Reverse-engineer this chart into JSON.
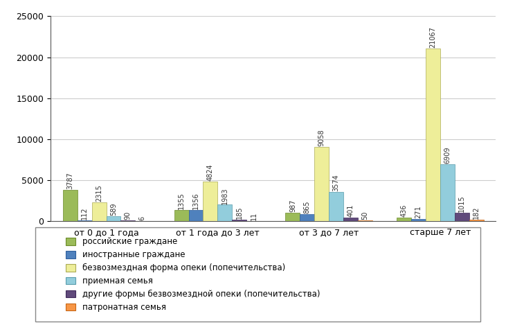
{
  "categories": [
    "от 0 до 1 года",
    "от 1 года до 3 лет",
    "от 3 до 7 лет",
    "старше 7 лет"
  ],
  "series": [
    {
      "name": "российские граждане",
      "values": [
        3787,
        1355,
        987,
        436
      ],
      "color": "#9BBB59",
      "edgecolor": "#6B8A2A"
    },
    {
      "name": "иностранные граждане",
      "values": [
        112,
        1356,
        865,
        271
      ],
      "color": "#4F81BD",
      "edgecolor": "#2F5F9D"
    },
    {
      "name": "безвозмездная форма опеки (попечительства)",
      "values": [
        2315,
        4824,
        9058,
        21067
      ],
      "color": "#EEEE99",
      "edgecolor": "#AAAA55"
    },
    {
      "name": "приемная семья",
      "values": [
        589,
        1983,
        3574,
        6909
      ],
      "color": "#92CDDC",
      "edgecolor": "#5A9DAC"
    },
    {
      "name": "другие формы безвозмездной опеки (попечительства)",
      "values": [
        90,
        185,
        401,
        1015
      ],
      "color": "#604A7B",
      "edgecolor": "#402A5B"
    },
    {
      "name": "патронатная семья",
      "values": [
        6,
        11,
        50,
        182
      ],
      "color": "#F79646",
      "edgecolor": "#C76616"
    }
  ],
  "ylim": [
    0,
    25000
  ],
  "yticks": [
    0,
    5000,
    10000,
    15000,
    20000,
    25000
  ],
  "bar_width": 0.13,
  "label_fontsize": 7,
  "legend_fontsize": 8.5,
  "tick_fontsize": 9,
  "fig_width": 7.31,
  "fig_height": 4.69,
  "dpi": 100
}
